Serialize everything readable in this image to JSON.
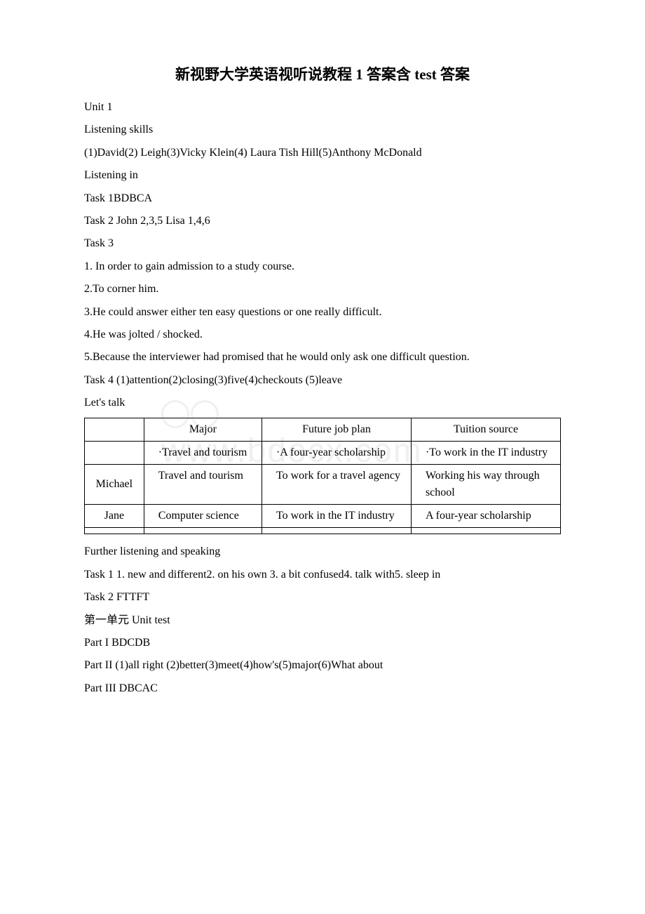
{
  "title": "新视野大学英语视听说教程 1 答案含 test 答案",
  "lines": {
    "l1": "Unit 1",
    "l2": "Listening skills",
    "l3": "(1)David(2) Leigh(3)Vicky Klein(4) Laura Tish Hill(5)Anthony McDonald",
    "l4": "Listening in",
    "l5": "Task 1BDBCA",
    "l6": "Task 2 John 2,3,5 Lisa 1,4,6",
    "l7": "Task 3",
    "l8": "1. In order to gain admission to a study course.",
    "l9": "2.To corner him.",
    "l10": "3.He could answer either ten easy questions or one really difficult.",
    "l11": "4.He was jolted / shocked.",
    "l12": "5.Because the interviewer had promised that he would only ask one difficult question.",
    "l13": "Task 4 (1)attention(2)closing(3)five(4)checkouts (5)leave",
    "l14": "Let's talk"
  },
  "table": {
    "headers": [
      "",
      "Major",
      "Future job plan",
      "Tuition source"
    ],
    "rows": [
      {
        "label": "",
        "major": "·Travel and tourism",
        "plan": "·A four-year scholarship",
        "tuition": "·To work in the IT industry"
      },
      {
        "label": "Michael",
        "major": "Travel and tourism",
        "plan": "To work for a travel agency",
        "tuition": "Working his way through school"
      },
      {
        "label": "Jane",
        "major": "Computer science",
        "plan": "To work in the IT industry",
        "tuition": "A four-year scholarship"
      },
      {
        "label": "",
        "major": "",
        "plan": "",
        "tuition": ""
      }
    ]
  },
  "lines2": {
    "l15": "Further listening and speaking",
    "l16": "Task 1 1. new and different2. on his own 3. a bit confused4. talk with5. sleep in",
    "l17": "Task 2 FTTFT",
    "l18": "第一单元 Unit test",
    "l19": "Part I BDCDB",
    "l20": "Part II (1)all right (2)better(3)meet(4)how's(5)major(6)What about",
    "l21": "Part III DBCAC"
  },
  "watermark": "www.bdocx.com",
  "colors": {
    "text": "#000000",
    "watermark": "#f0f0f0",
    "border": "#000000",
    "background": "#ffffff"
  },
  "fontsizes": {
    "title": 21,
    "body": 16,
    "watermark": 48
  }
}
